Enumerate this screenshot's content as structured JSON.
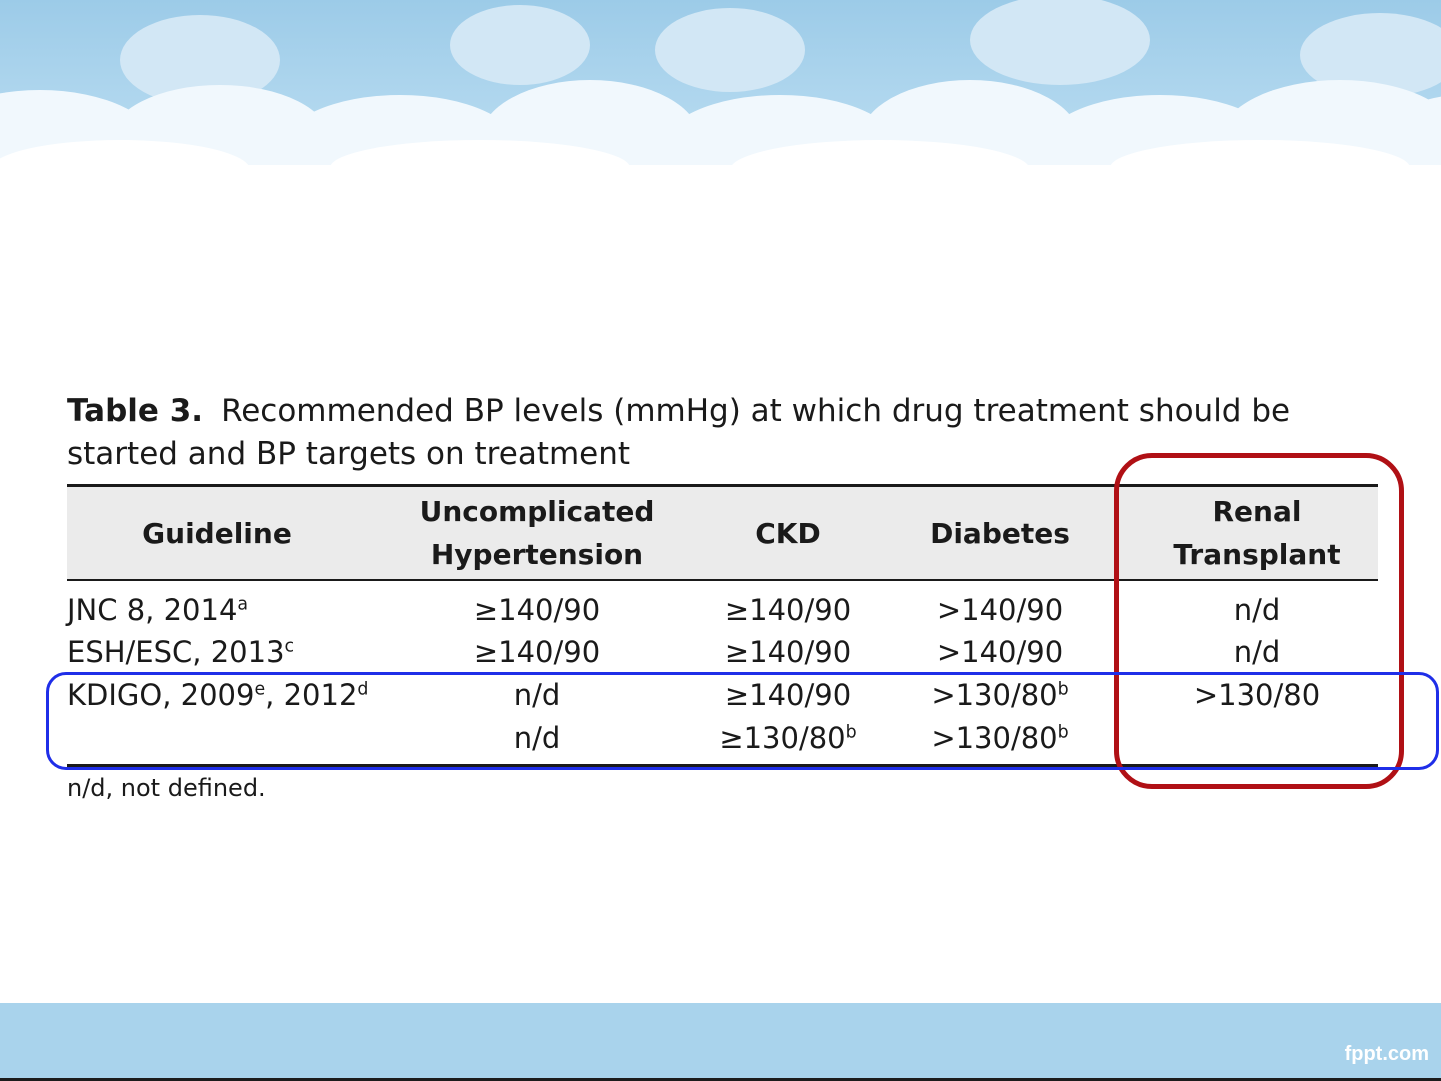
{
  "slide": {
    "brand": "fppt.com",
    "colors": {
      "sky": "#a9d3ec",
      "cloud": "#eaf4fb",
      "highlight_red": "#b01015",
      "highlight_blue": "#1f2ee8",
      "header_fill": "#ebebeb"
    }
  },
  "table": {
    "label": "Table 3.",
    "caption_line1": "Recommended BP levels (mmHg) at which drug treatment should be",
    "caption_line2": "started and BP targets on treatment",
    "columns": [
      {
        "line1": "Guideline",
        "line2": ""
      },
      {
        "line1": "Uncomplicated",
        "line2": "Hypertension"
      },
      {
        "line1": "CKD",
        "line2": ""
      },
      {
        "line1": "Diabetes",
        "line2": ""
      },
      {
        "line1": "Renal Transplant",
        "line2": ""
      }
    ],
    "rows": [
      {
        "guideline": {
          "text": "JNC 8, 2014",
          "sup": "a",
          "text2": "",
          "sup2": ""
        },
        "uncomplicated": {
          "text": "≥140/90",
          "sup": ""
        },
        "ckd": {
          "text": "≥140/90",
          "sup": ""
        },
        "diabetes": {
          "text": ">140/90",
          "sup": ""
        },
        "renal_transplant": {
          "text": "n/d",
          "sup": ""
        }
      },
      {
        "guideline": {
          "text": "ESH/ESC, 2013",
          "sup": "c",
          "text2": "",
          "sup2": ""
        },
        "uncomplicated": {
          "text": "≥140/90",
          "sup": ""
        },
        "ckd": {
          "text": "≥140/90",
          "sup": ""
        },
        "diabetes": {
          "text": ">140/90",
          "sup": ""
        },
        "renal_transplant": {
          "text": "n/d",
          "sup": ""
        }
      },
      {
        "guideline": {
          "text": "KDIGO, 2009",
          "sup": "e",
          "text2": ", 2012",
          "sup2": "d"
        },
        "uncomplicated": {
          "text": "n/d",
          "sup": ""
        },
        "ckd": {
          "text": "≥140/90",
          "sup": ""
        },
        "diabetes": {
          "text": ">130/80",
          "sup": "b"
        },
        "renal_transplant": {
          "text": ">130/80",
          "sup": ""
        }
      },
      {
        "guideline": {
          "text": "",
          "sup": "",
          "text2": "",
          "sup2": ""
        },
        "uncomplicated": {
          "text": "n/d",
          "sup": ""
        },
        "ckd": {
          "text": "≥130/80",
          "sup": "b"
        },
        "diabetes": {
          "text": ">130/80",
          "sup": "b"
        },
        "renal_transplant": {
          "text": "",
          "sup": ""
        }
      }
    ],
    "footnote": "n/d, not defined."
  }
}
